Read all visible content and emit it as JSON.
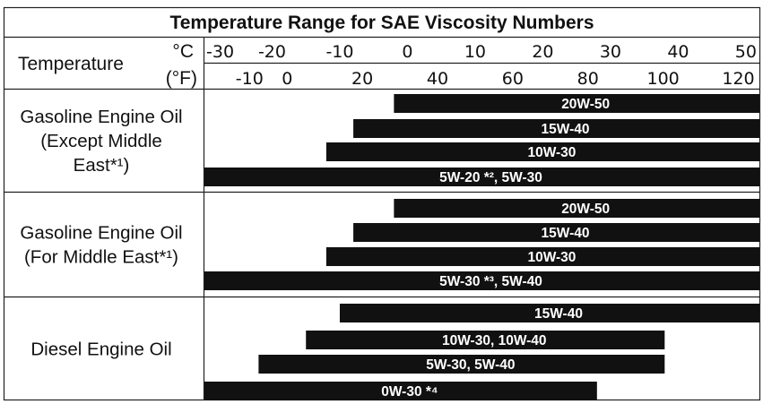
{
  "chart_data": {
    "type": "bar",
    "orientation": "horizontal-range",
    "title": "Temperature Range for SAE Viscosity Numbers",
    "axis_label": "Temperature",
    "unit_c": "°C",
    "unit_f": "(°F)",
    "celsius_ticks": [
      "-30",
      "-20",
      "-10",
      "0",
      "10",
      "20",
      "30",
      "40",
      "50"
    ],
    "fahrenheit_ticks": [
      "-10",
      "0",
      "20",
      "40",
      "60",
      "80",
      "100",
      "120"
    ],
    "celsius_tick_values": [
      -30,
      -20,
      -10,
      0,
      10,
      20,
      30,
      40,
      50
    ],
    "fahrenheit_tick_values": [
      -10,
      0,
      20,
      40,
      60,
      80,
      100,
      120
    ],
    "xlim_celsius": [
      -30,
      52
    ],
    "groups": [
      {
        "label_lines": [
          "Gasoline Engine Oil",
          "(Except Middle",
          "East*¹)"
        ],
        "bars": [
          {
            "name": "20W-50",
            "min_c": -2,
            "max_c": 52
          },
          {
            "name": "15W-40",
            "min_c": -8,
            "max_c": 52
          },
          {
            "name": "10W-30",
            "min_c": -12,
            "max_c": 52
          },
          {
            "name": "5W-20 *², 5W-30",
            "min_c": -30,
            "max_c": 52
          }
        ]
      },
      {
        "label_lines": [
          "Gasoline Engine Oil",
          "(For Middle East*¹)"
        ],
        "bars": [
          {
            "name": "20W-50",
            "min_c": -2,
            "max_c": 52
          },
          {
            "name": "15W-40",
            "min_c": -8,
            "max_c": 52
          },
          {
            "name": "10W-30",
            "min_c": -12,
            "max_c": 52
          },
          {
            "name": "5W-30 *³, 5W-40",
            "min_c": -30,
            "max_c": 52
          }
        ]
      },
      {
        "label_lines": [
          "Diesel Engine Oil"
        ],
        "bars": [
          {
            "name": "15W-40",
            "min_c": -10,
            "max_c": 52
          },
          {
            "name": "10W-30, 10W-40",
            "min_c": -15,
            "max_c": 38
          },
          {
            "name": "5W-30, 5W-40",
            "min_c": -22,
            "max_c": 38
          },
          {
            "name": "0W-30 *⁴",
            "min_c": -30,
            "max_c": 28
          }
        ]
      }
    ]
  }
}
